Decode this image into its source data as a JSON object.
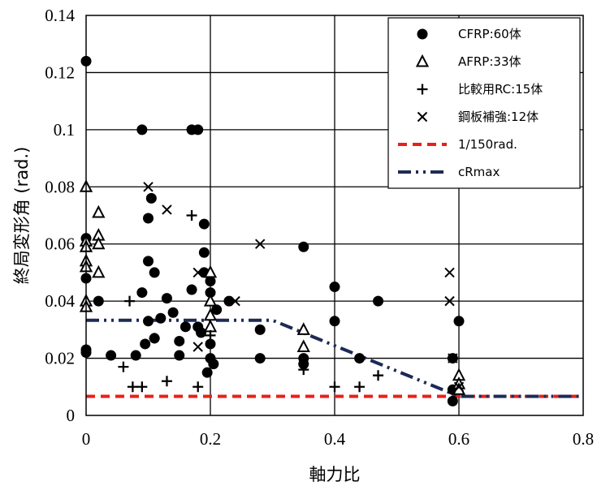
{
  "chart_data": {
    "type": "scatter",
    "xlabel": "軸力比",
    "ylabel": "終局変形角 (rad.)",
    "xlim": [
      0,
      0.8
    ],
    "ylim": [
      0,
      0.14
    ],
    "x_ticks": [
      "0",
      "0.2",
      "0.4",
      "0.6",
      "0.8"
    ],
    "y_ticks": [
      "0",
      "0.02",
      "0.04",
      "0.06",
      "0.08",
      "0.1",
      "0.12",
      "0.14"
    ],
    "grid": true,
    "legend_position": "top-right",
    "series": [
      {
        "name": "CFRP:60体",
        "marker": "circle",
        "color": "#000000",
        "points": [
          [
            0,
            0.124
          ],
          [
            0,
            0.062
          ],
          [
            0,
            0.048
          ],
          [
            0,
            0.023
          ],
          [
            0,
            0.022
          ],
          [
            0.02,
            0.04
          ],
          [
            0.04,
            0.021
          ],
          [
            0.08,
            0.021
          ],
          [
            0.09,
            0.043
          ],
          [
            0.09,
            0.1
          ],
          [
            0.095,
            0.025
          ],
          [
            0.1,
            0.054
          ],
          [
            0.1,
            0.069
          ],
          [
            0.1,
            0.033
          ],
          [
            0.105,
            0.076
          ],
          [
            0.11,
            0.05
          ],
          [
            0.11,
            0.027
          ],
          [
            0.12,
            0.034
          ],
          [
            0.13,
            0.041
          ],
          [
            0.14,
            0.036
          ],
          [
            0.15,
            0.026
          ],
          [
            0.15,
            0.021
          ],
          [
            0.16,
            0.031
          ],
          [
            0.17,
            0.044
          ],
          [
            0.17,
            0.1
          ],
          [
            0.18,
            0.1
          ],
          [
            0.18,
            0.031
          ],
          [
            0.185,
            0.029
          ],
          [
            0.19,
            0.05
          ],
          [
            0.19,
            0.057
          ],
          [
            0.19,
            0.067
          ],
          [
            0.195,
            0.015
          ],
          [
            0.2,
            0.02
          ],
          [
            0.2,
            0.025
          ],
          [
            0.2,
            0.043
          ],
          [
            0.2,
            0.047
          ],
          [
            0.205,
            0.018
          ],
          [
            0.21,
            0.037
          ],
          [
            0.23,
            0.04
          ],
          [
            0.28,
            0.03
          ],
          [
            0.28,
            0.02
          ],
          [
            0.35,
            0.02
          ],
          [
            0.35,
            0.018
          ],
          [
            0.35,
            0.059
          ],
          [
            0.4,
            0.045
          ],
          [
            0.4,
            0.033
          ],
          [
            0.44,
            0.02
          ],
          [
            0.47,
            0.04
          ],
          [
            0.59,
            0.005
          ],
          [
            0.59,
            0.009
          ],
          [
            0.59,
            0.02
          ],
          [
            0.6,
            0.033
          ]
        ]
      },
      {
        "name": "AFRP:33体",
        "marker": "triangle",
        "color": "#000000",
        "points": [
          [
            0,
            0.08
          ],
          [
            0,
            0.061
          ],
          [
            0,
            0.059
          ],
          [
            0,
            0.054
          ],
          [
            0,
            0.052
          ],
          [
            0,
            0.04
          ],
          [
            0,
            0.038
          ],
          [
            0.02,
            0.071
          ],
          [
            0.02,
            0.063
          ],
          [
            0.02,
            0.06
          ],
          [
            0.02,
            0.05
          ],
          [
            0.2,
            0.05
          ],
          [
            0.2,
            0.04
          ],
          [
            0.2,
            0.035
          ],
          [
            0.2,
            0.031
          ],
          [
            0.35,
            0.03
          ],
          [
            0.35,
            0.024
          ],
          [
            0.6,
            0.014
          ],
          [
            0.6,
            0.011
          ],
          [
            0.6,
            0.009
          ]
        ]
      },
      {
        "name": "比較用RC:15体",
        "marker": "plus",
        "color": "#000000",
        "points": [
          [
            0.06,
            0.017
          ],
          [
            0.07,
            0.04
          ],
          [
            0.075,
            0.01
          ],
          [
            0.09,
            0.01
          ],
          [
            0.11,
            0.027
          ],
          [
            0.13,
            0.012
          ],
          [
            0.17,
            0.07
          ],
          [
            0.18,
            0.01
          ],
          [
            0.2,
            0.028
          ],
          [
            0.35,
            0.016
          ],
          [
            0.4,
            0.01
          ],
          [
            0.44,
            0.01
          ],
          [
            0.47,
            0.014
          ]
        ]
      },
      {
        "name": "鋼板補強:12体",
        "marker": "cross",
        "color": "#000000",
        "points": [
          [
            0.1,
            0.08
          ],
          [
            0.13,
            0.072
          ],
          [
            0.18,
            0.05
          ],
          [
            0.18,
            0.024
          ],
          [
            0.24,
            0.04
          ],
          [
            0.28,
            0.06
          ],
          [
            0.585,
            0.05
          ],
          [
            0.585,
            0.04
          ],
          [
            0.59,
            0.02
          ],
          [
            0.6,
            0.01
          ]
        ]
      },
      {
        "name": "1/150rad.",
        "type": "line",
        "style": "dashed",
        "color": "#e8201a",
        "points": [
          [
            0,
            0.00667
          ],
          [
            0.8,
            0.00667
          ]
        ]
      },
      {
        "name": "cRmax",
        "type": "line",
        "style": "dash-dot-dot",
        "color": "#1c2a57",
        "points": [
          [
            0,
            0.0333
          ],
          [
            0.3,
            0.0333
          ],
          [
            0.6,
            0.00667
          ],
          [
            0.8,
            0.00667
          ]
        ]
      }
    ]
  }
}
